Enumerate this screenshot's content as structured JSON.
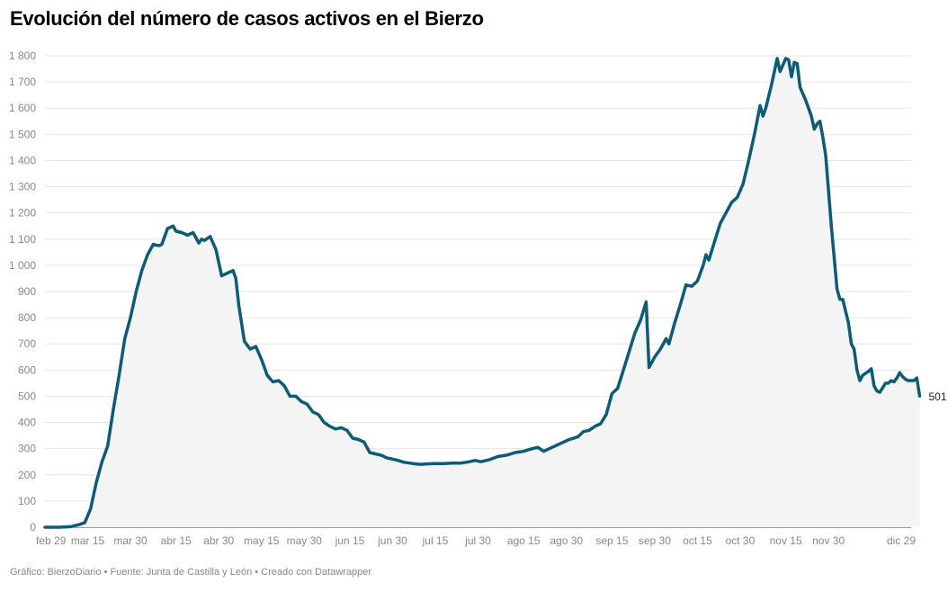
{
  "title": "Evolución del número de casos activos en el Bierzo",
  "footer": "Gráfico: BierzoDiario • Fuente: Junta de Castilla y León • Creado con Datawrapper",
  "colors": {
    "line": "#0d5c75",
    "area": "#f4f4f5",
    "grid": "#e6e6e6"
  },
  "chart_data": {
    "type": "area",
    "title": "Evolución del número de casos activos en el Bierzo",
    "y_ticks": [
      "0",
      "100",
      "200",
      "300",
      "400",
      "500",
      "600",
      "700",
      "800",
      "900",
      "1 000",
      "1 100",
      "1 200",
      "1 300",
      "1 400",
      "1 500",
      "1 600",
      "1 700",
      "1 800"
    ],
    "ylim": [
      0,
      1800
    ],
    "x_ticks": [
      {
        "label": "feb 29",
        "date": "2020-02-29"
      },
      {
        "label": "mar 15",
        "date": "2020-03-15"
      },
      {
        "label": "mar 30",
        "date": "2020-03-30"
      },
      {
        "label": "abr 15",
        "date": "2020-04-15"
      },
      {
        "label": "abr 30",
        "date": "2020-04-30"
      },
      {
        "label": "may 15",
        "date": "2020-05-15"
      },
      {
        "label": "may 30",
        "date": "2020-05-30"
      },
      {
        "label": "jun 15",
        "date": "2020-06-15"
      },
      {
        "label": "jun 30",
        "date": "2020-06-30"
      },
      {
        "label": "jul 15",
        "date": "2020-07-15"
      },
      {
        "label": "jul 30",
        "date": "2020-07-30"
      },
      {
        "label": "ago 15",
        "date": "2020-08-15"
      },
      {
        "label": "ago 30",
        "date": "2020-08-30"
      },
      {
        "label": "sep 15",
        "date": "2020-09-15"
      },
      {
        "label": "sep 30",
        "date": "2020-09-30"
      },
      {
        "label": "oct 15",
        "date": "2020-10-15"
      },
      {
        "label": "oct 30",
        "date": "2020-10-30"
      },
      {
        "label": "nov 15",
        "date": "2020-11-15"
      },
      {
        "label": "nov 30",
        "date": "2020-11-30"
      },
      {
        "label": "dic 29",
        "date": "2020-12-29"
      }
    ],
    "xlim": [
      "2020-02-29",
      "2020-12-29"
    ],
    "grid": true,
    "end_label": "501",
    "series": [
      {
        "points": [
          [
            "2020-02-29",
            0
          ],
          [
            "2020-03-05",
            0
          ],
          [
            "2020-03-09",
            2
          ],
          [
            "2020-03-12",
            10
          ],
          [
            "2020-03-14",
            18
          ],
          [
            "2020-03-16",
            70
          ],
          [
            "2020-03-18",
            170
          ],
          [
            "2020-03-20",
            250
          ],
          [
            "2020-03-22",
            310
          ],
          [
            "2020-03-24",
            450
          ],
          [
            "2020-03-26",
            580
          ],
          [
            "2020-03-28",
            720
          ],
          [
            "2020-03-30",
            800
          ],
          [
            "2020-04-01",
            900
          ],
          [
            "2020-04-03",
            980
          ],
          [
            "2020-04-05",
            1040
          ],
          [
            "2020-04-07",
            1080
          ],
          [
            "2020-04-09",
            1075
          ],
          [
            "2020-04-10",
            1080
          ],
          [
            "2020-04-12",
            1140
          ],
          [
            "2020-04-14",
            1150
          ],
          [
            "2020-04-15",
            1130
          ],
          [
            "2020-04-17",
            1125
          ],
          [
            "2020-04-19",
            1115
          ],
          [
            "2020-04-21",
            1125
          ],
          [
            "2020-04-23",
            1085
          ],
          [
            "2020-04-24",
            1100
          ],
          [
            "2020-04-25",
            1095
          ],
          [
            "2020-04-27",
            1110
          ],
          [
            "2020-04-29",
            1060
          ],
          [
            "2020-05-01",
            960
          ],
          [
            "2020-05-03",
            970
          ],
          [
            "2020-05-05",
            980
          ],
          [
            "2020-05-06",
            950
          ],
          [
            "2020-05-07",
            850
          ],
          [
            "2020-05-09",
            710
          ],
          [
            "2020-05-11",
            680
          ],
          [
            "2020-05-13",
            690
          ],
          [
            "2020-05-15",
            640
          ],
          [
            "2020-05-17",
            580
          ],
          [
            "2020-05-19",
            555
          ],
          [
            "2020-05-21",
            560
          ],
          [
            "2020-05-23",
            540
          ],
          [
            "2020-05-25",
            500
          ],
          [
            "2020-05-27",
            500
          ],
          [
            "2020-05-29",
            480
          ],
          [
            "2020-05-31",
            470
          ],
          [
            "2020-06-02",
            440
          ],
          [
            "2020-06-04",
            430
          ],
          [
            "2020-06-06",
            400
          ],
          [
            "2020-06-08",
            385
          ],
          [
            "2020-06-10",
            375
          ],
          [
            "2020-06-12",
            380
          ],
          [
            "2020-06-14",
            370
          ],
          [
            "2020-06-16",
            340
          ],
          [
            "2020-06-18",
            335
          ],
          [
            "2020-06-20",
            325
          ],
          [
            "2020-06-22",
            285
          ],
          [
            "2020-06-24",
            280
          ],
          [
            "2020-06-26",
            275
          ],
          [
            "2020-06-28",
            265
          ],
          [
            "2020-06-30",
            260
          ],
          [
            "2020-07-02",
            255
          ],
          [
            "2020-07-04",
            248
          ],
          [
            "2020-07-06",
            245
          ],
          [
            "2020-07-08",
            242
          ],
          [
            "2020-07-10",
            240
          ],
          [
            "2020-07-12",
            242
          ],
          [
            "2020-07-15",
            243
          ],
          [
            "2020-07-18",
            243
          ],
          [
            "2020-07-21",
            245
          ],
          [
            "2020-07-24",
            245
          ],
          [
            "2020-07-27",
            250
          ],
          [
            "2020-07-29",
            255
          ],
          [
            "2020-07-31",
            250
          ],
          [
            "2020-08-03",
            258
          ],
          [
            "2020-08-06",
            270
          ],
          [
            "2020-08-09",
            275
          ],
          [
            "2020-08-12",
            285
          ],
          [
            "2020-08-15",
            290
          ],
          [
            "2020-08-18",
            300
          ],
          [
            "2020-08-20",
            305
          ],
          [
            "2020-08-22",
            290
          ],
          [
            "2020-08-24",
            300
          ],
          [
            "2020-08-26",
            310
          ],
          [
            "2020-08-28",
            320
          ],
          [
            "2020-08-31",
            335
          ],
          [
            "2020-09-03",
            345
          ],
          [
            "2020-09-05",
            365
          ],
          [
            "2020-09-07",
            370
          ],
          [
            "2020-09-09",
            385
          ],
          [
            "2020-09-11",
            395
          ],
          [
            "2020-09-13",
            430
          ],
          [
            "2020-09-15",
            510
          ],
          [
            "2020-09-17",
            530
          ],
          [
            "2020-09-19",
            600
          ],
          [
            "2020-09-21",
            670
          ],
          [
            "2020-09-23",
            740
          ],
          [
            "2020-09-25",
            790
          ],
          [
            "2020-09-27",
            860
          ],
          [
            "2020-09-28",
            610
          ],
          [
            "2020-09-30",
            650
          ],
          [
            "2020-10-02",
            680
          ],
          [
            "2020-10-04",
            720
          ],
          [
            "2020-10-05",
            700
          ],
          [
            "2020-10-07",
            780
          ],
          [
            "2020-10-09",
            850
          ],
          [
            "2020-10-11",
            925
          ],
          [
            "2020-10-13",
            920
          ],
          [
            "2020-10-15",
            940
          ],
          [
            "2020-10-17",
            1000
          ],
          [
            "2020-10-18",
            1040
          ],
          [
            "2020-10-19",
            1020
          ],
          [
            "2020-10-21",
            1090
          ],
          [
            "2020-10-23",
            1160
          ],
          [
            "2020-10-25",
            1200
          ],
          [
            "2020-10-27",
            1240
          ],
          [
            "2020-10-29",
            1260
          ],
          [
            "2020-10-31",
            1310
          ],
          [
            "2020-11-02",
            1400
          ],
          [
            "2020-11-04",
            1500
          ],
          [
            "2020-11-06",
            1610
          ],
          [
            "2020-11-07",
            1570
          ],
          [
            "2020-11-08",
            1600
          ],
          [
            "2020-11-10",
            1690
          ],
          [
            "2020-11-12",
            1790
          ],
          [
            "2020-11-13",
            1740
          ],
          [
            "2020-11-15",
            1790
          ],
          [
            "2020-11-16",
            1785
          ],
          [
            "2020-11-17",
            1720
          ],
          [
            "2020-11-18",
            1775
          ],
          [
            "2020-11-19",
            1770
          ],
          [
            "2020-11-20",
            1680
          ],
          [
            "2020-11-22",
            1630
          ],
          [
            "2020-11-24",
            1570
          ],
          [
            "2020-11-25",
            1520
          ],
          [
            "2020-11-26",
            1540
          ],
          [
            "2020-11-27",
            1550
          ],
          [
            "2020-11-28",
            1490
          ],
          [
            "2020-11-29",
            1420
          ],
          [
            "2020-12-01",
            1150
          ],
          [
            "2020-12-03",
            910
          ],
          [
            "2020-12-04",
            870
          ],
          [
            "2020-12-05",
            870
          ],
          [
            "2020-12-07",
            780
          ],
          [
            "2020-12-08",
            700
          ],
          [
            "2020-12-09",
            680
          ],
          [
            "2020-12-10",
            600
          ],
          [
            "2020-12-11",
            560
          ],
          [
            "2020-12-12",
            580
          ],
          [
            "2020-12-14",
            595
          ],
          [
            "2020-12-15",
            605
          ],
          [
            "2020-12-16",
            540
          ],
          [
            "2020-12-17",
            520
          ],
          [
            "2020-12-18",
            515
          ],
          [
            "2020-12-20",
            550
          ],
          [
            "2020-12-21",
            550
          ],
          [
            "2020-12-22",
            560
          ],
          [
            "2020-12-23",
            555
          ],
          [
            "2020-12-24",
            570
          ],
          [
            "2020-12-25",
            590
          ],
          [
            "2020-12-26",
            575
          ],
          [
            "2020-12-27",
            565
          ],
          [
            "2020-12-28",
            560
          ],
          [
            "2020-12-29",
            560
          ],
          [
            "2020-12-30",
            560
          ],
          [
            "2020-12-31",
            570
          ],
          [
            "2021-01-01",
            501
          ]
        ]
      }
    ]
  }
}
